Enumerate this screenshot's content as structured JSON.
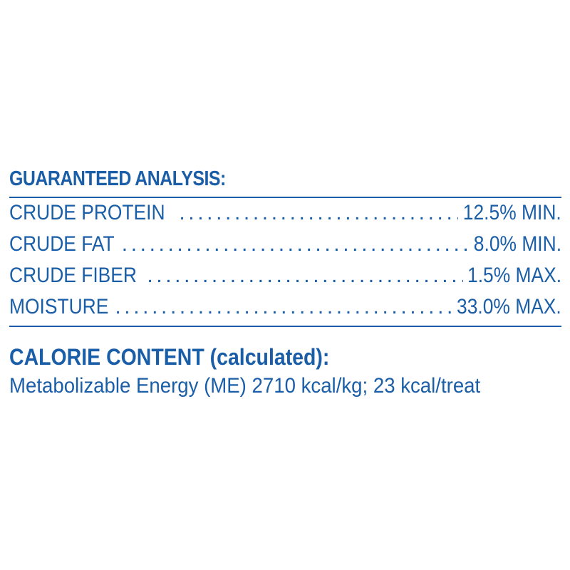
{
  "guaranteed_analysis": {
    "title": "GUARANTEED ANALYSIS:",
    "rows": [
      {
        "label": "CRUDE PROTEIN",
        "value": "12.5% MIN."
      },
      {
        "label": "CRUDE FAT",
        "value": "8.0% MIN."
      },
      {
        "label": "CRUDE FIBER",
        "value": "1.5% MAX."
      },
      {
        "label": "MOISTURE",
        "value": "33.0% MAX."
      }
    ]
  },
  "calorie_content": {
    "title": "CALORIE CONTENT (calculated):",
    "text": "Metabolizable Energy (ME) 2710 kcal/kg; 23 kcal/treat"
  },
  "colors": {
    "text": "#1b5ea8",
    "background": "#ffffff"
  }
}
